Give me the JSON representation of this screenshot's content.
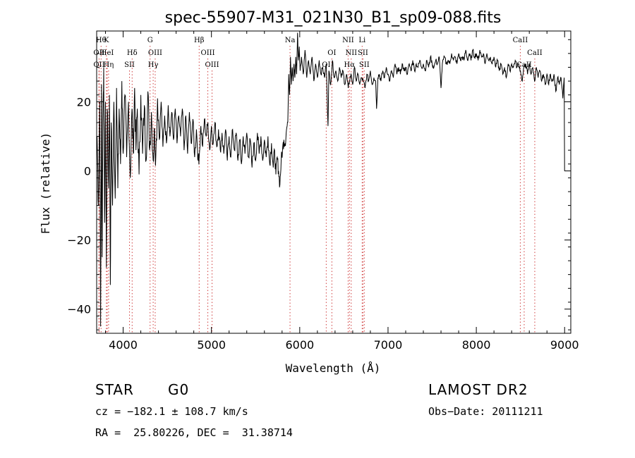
{
  "chart_data": {
    "type": "line",
    "title": "spec-55907-M31_021N30_B1_sp09-088.fits",
    "xlabel": "Wavelength (Å)",
    "ylabel": "Flux (relative)",
    "xlim": [
      3700,
      9070
    ],
    "ylim": [
      -47,
      40.5
    ],
    "xticks": [
      4000,
      5000,
      6000,
      7000,
      8000,
      9000
    ],
    "xtick_labels": [
      "4000",
      "5000",
      "6000",
      "7000",
      "8000",
      "9000"
    ],
    "yticks": [
      -40,
      -20,
      0,
      20
    ],
    "ytick_labels": [
      "−40",
      "−20",
      "0",
      "20"
    ],
    "grid": false,
    "series": [
      {
        "color": "#000000",
        "points": [
          [
            3705,
            10
          ],
          [
            3720,
            -10
          ],
          [
            3735,
            20
          ],
          [
            3745,
            -45
          ],
          [
            3755,
            25
          ],
          [
            3762,
            -25
          ],
          [
            3770,
            15
          ],
          [
            3780,
            30
          ],
          [
            3790,
            -15
          ],
          [
            3800,
            20
          ],
          [
            3810,
            -28
          ],
          [
            3820,
            18
          ],
          [
            3835,
            -5
          ],
          [
            3845,
            22
          ],
          [
            3855,
            -33
          ],
          [
            3865,
            14
          ],
          [
            3880,
            -10
          ],
          [
            3895,
            20
          ],
          [
            3910,
            -8
          ],
          [
            3925,
            24
          ],
          [
            3940,
            -5
          ],
          [
            3955,
            18
          ],
          [
            3970,
            2
          ],
          [
            3985,
            26
          ],
          [
            4000,
            5
          ],
          [
            4020,
            22
          ],
          [
            4040,
            4
          ],
          [
            4060,
            20
          ],
          [
            4080,
            -2
          ],
          [
            4100,
            18
          ],
          [
            4115,
            5
          ],
          [
            4130,
            24
          ],
          [
            4145,
            6
          ],
          [
            4160,
            18
          ],
          [
            4180,
            -1
          ],
          [
            4200,
            22
          ],
          [
            4220,
            5
          ],
          [
            4240,
            19
          ],
          [
            4260,
            3
          ],
          [
            4280,
            23
          ],
          [
            4300,
            6
          ],
          [
            4320,
            17
          ],
          [
            4340,
            3
          ],
          [
            4355,
            12
          ],
          [
            4370,
            4
          ],
          [
            4390,
            21
          ],
          [
            4410,
            9
          ],
          [
            4430,
            20
          ],
          [
            4450,
            7
          ],
          [
            4470,
            16
          ],
          [
            4490,
            8
          ],
          [
            4510,
            19
          ],
          [
            4530,
            10
          ],
          [
            4550,
            17
          ],
          [
            4570,
            9
          ],
          [
            4590,
            18
          ],
          [
            4610,
            8
          ],
          [
            4630,
            16
          ],
          [
            4650,
            10
          ],
          [
            4670,
            18
          ],
          [
            4690,
            6
          ],
          [
            4710,
            16
          ],
          [
            4730,
            5
          ],
          [
            4750,
            17
          ],
          [
            4770,
            8
          ],
          [
            4790,
            15
          ],
          [
            4810,
            4
          ],
          [
            4830,
            12
          ],
          [
            4850,
            3
          ],
          [
            4861,
            4
          ],
          [
            4880,
            13
          ],
          [
            4900,
            7
          ],
          [
            4920,
            15
          ],
          [
            4940,
            10
          ],
          [
            4960,
            14
          ],
          [
            4980,
            6
          ],
          [
            5000,
            13
          ],
          [
            5020,
            8
          ],
          [
            5040,
            14
          ],
          [
            5060,
            7
          ],
          [
            5080,
            12
          ],
          [
            5100,
            6
          ],
          [
            5120,
            11
          ],
          [
            5140,
            5
          ],
          [
            5160,
            12
          ],
          [
            5180,
            3
          ],
          [
            5200,
            10
          ],
          [
            5220,
            4
          ],
          [
            5240,
            12
          ],
          [
            5260,
            6
          ],
          [
            5280,
            11
          ],
          [
            5300,
            3
          ],
          [
            5320,
            9
          ],
          [
            5340,
            2
          ],
          [
            5360,
            10
          ],
          [
            5380,
            5
          ],
          [
            5400,
            11
          ],
          [
            5420,
            4
          ],
          [
            5440,
            9
          ],
          [
            5460,
            1
          ],
          [
            5480,
            8
          ],
          [
            5500,
            3
          ],
          [
            5520,
            11
          ],
          [
            5540,
            5
          ],
          [
            5560,
            10
          ],
          [
            5580,
            3
          ],
          [
            5600,
            9
          ],
          [
            5620,
            4
          ],
          [
            5640,
            10
          ],
          [
            5660,
            2
          ],
          [
            5680,
            8
          ],
          [
            5700,
            1
          ],
          [
            5715,
            6
          ],
          [
            5730,
            -1
          ],
          [
            5745,
            4
          ],
          [
            5760,
            0
          ],
          [
            5775,
            -4
          ],
          [
            5790,
            3
          ],
          [
            5805,
            6
          ],
          [
            5820,
            9
          ],
          [
            5835,
            8
          ],
          [
            5850,
            12
          ],
          [
            5865,
            14
          ],
          [
            5875,
            28
          ],
          [
            5885,
            22
          ],
          [
            5895,
            33
          ],
          [
            5905,
            25
          ],
          [
            5915,
            30
          ],
          [
            5925,
            26
          ],
          [
            5935,
            31
          ],
          [
            5945,
            27
          ],
          [
            5955,
            33
          ],
          [
            5965,
            28
          ],
          [
            5975,
            40
          ],
          [
            5985,
            32
          ],
          [
            5995,
            36
          ],
          [
            6005,
            29
          ],
          [
            6020,
            33
          ],
          [
            6040,
            28
          ],
          [
            6060,
            35
          ],
          [
            6080,
            27
          ],
          [
            6100,
            32
          ],
          [
            6120,
            28
          ],
          [
            6140,
            33
          ],
          [
            6160,
            26
          ],
          [
            6180,
            31
          ],
          [
            6200,
            27
          ],
          [
            6220,
            32
          ],
          [
            6240,
            28
          ],
          [
            6260,
            30
          ],
          [
            6280,
            27
          ],
          [
            6300,
            31
          ],
          [
            6320,
            13
          ],
          [
            6330,
            29
          ],
          [
            6350,
            25
          ],
          [
            6370,
            32
          ],
          [
            6390,
            27
          ],
          [
            6410,
            29
          ],
          [
            6430,
            26
          ],
          [
            6450,
            30
          ],
          [
            6470,
            27
          ],
          [
            6490,
            29
          ],
          [
            6510,
            25
          ],
          [
            6530,
            28
          ],
          [
            6550,
            24
          ],
          [
            6563,
            26
          ],
          [
            6580,
            28
          ],
          [
            6600,
            25
          ],
          [
            6620,
            30
          ],
          [
            6640,
            26
          ],
          [
            6660,
            28
          ],
          [
            6680,
            25
          ],
          [
            6700,
            27
          ],
          [
            6720,
            26
          ],
          [
            6740,
            24
          ],
          [
            6760,
            28
          ],
          [
            6780,
            26
          ],
          [
            6800,
            29
          ],
          [
            6820,
            25
          ],
          [
            6840,
            27
          ],
          [
            6860,
            26
          ],
          [
            6870,
            18
          ],
          [
            6885,
            27
          ],
          [
            6900,
            28
          ],
          [
            6920,
            26
          ],
          [
            6940,
            29
          ],
          [
            6960,
            27
          ],
          [
            6980,
            30
          ],
          [
            7000,
            28
          ],
          [
            7020,
            26
          ],
          [
            7040,
            29
          ],
          [
            7060,
            27
          ],
          [
            7080,
            31
          ],
          [
            7100,
            28
          ],
          [
            7120,
            30
          ],
          [
            7140,
            28
          ],
          [
            7160,
            31
          ],
          [
            7180,
            29
          ],
          [
            7200,
            30
          ],
          [
            7220,
            28
          ],
          [
            7240,
            31
          ],
          [
            7260,
            29
          ],
          [
            7280,
            32
          ],
          [
            7300,
            29
          ],
          [
            7320,
            31
          ],
          [
            7340,
            30
          ],
          [
            7360,
            32
          ],
          [
            7380,
            30
          ],
          [
            7400,
            31
          ],
          [
            7420,
            29
          ],
          [
            7440,
            32
          ],
          [
            7460,
            30
          ],
          [
            7480,
            33
          ],
          [
            7500,
            31
          ],
          [
            7520,
            30
          ],
          [
            7540,
            32
          ],
          [
            7560,
            31
          ],
          [
            7580,
            33
          ],
          [
            7600,
            24
          ],
          [
            7615,
            31
          ],
          [
            7640,
            33
          ],
          [
            7660,
            31
          ],
          [
            7680,
            32
          ],
          [
            7700,
            31
          ],
          [
            7720,
            34
          ],
          [
            7740,
            32
          ],
          [
            7760,
            33
          ],
          [
            7780,
            31
          ],
          [
            7800,
            34
          ],
          [
            7820,
            32
          ],
          [
            7840,
            33
          ],
          [
            7860,
            32
          ],
          [
            7880,
            35
          ],
          [
            7900,
            32
          ],
          [
            7920,
            34
          ],
          [
            7940,
            32
          ],
          [
            7960,
            35
          ],
          [
            7980,
            33
          ],
          [
            8000,
            34
          ],
          [
            8020,
            32
          ],
          [
            8040,
            35
          ],
          [
            8060,
            33
          ],
          [
            8080,
            34
          ],
          [
            8100,
            31
          ],
          [
            8120,
            34
          ],
          [
            8140,
            32
          ],
          [
            8160,
            33
          ],
          [
            8180,
            31
          ],
          [
            8200,
            33
          ],
          [
            8220,
            30
          ],
          [
            8240,
            32
          ],
          [
            8260,
            29
          ],
          [
            8280,
            31
          ],
          [
            8300,
            28
          ],
          [
            8320,
            30
          ],
          [
            8340,
            27
          ],
          [
            8360,
            31
          ],
          [
            8380,
            29
          ],
          [
            8400,
            31
          ],
          [
            8420,
            30
          ],
          [
            8440,
            32
          ],
          [
            8460,
            30
          ],
          [
            8480,
            31
          ],
          [
            8500,
            29
          ],
          [
            8520,
            26
          ],
          [
            8540,
            30
          ],
          [
            8560,
            31
          ],
          [
            8580,
            28
          ],
          [
            8600,
            31
          ],
          [
            8620,
            28
          ],
          [
            8640,
            30
          ],
          [
            8660,
            26
          ],
          [
            8680,
            30
          ],
          [
            8700,
            27
          ],
          [
            8720,
            29
          ],
          [
            8740,
            26
          ],
          [
            8760,
            28
          ],
          [
            8780,
            25
          ],
          [
            8800,
            28
          ],
          [
            8820,
            25
          ],
          [
            8840,
            28
          ],
          [
            8860,
            26
          ],
          [
            8880,
            28
          ],
          [
            8900,
            23
          ],
          [
            8920,
            27
          ],
          [
            8940,
            25
          ],
          [
            8960,
            27
          ],
          [
            8980,
            21
          ],
          [
            8995,
            27
          ],
          [
            9000,
            0
          ]
        ]
      }
    ],
    "line_ids": [
      {
        "wl": 3750,
        "label": "Hθ",
        "row": 0
      },
      {
        "wl": 3810,
        "label": "K",
        "row": 0
      },
      {
        "wl": 3727,
        "label": "OII",
        "row": 1
      },
      {
        "wl": 3820,
        "label": "HeI",
        "row": 1
      },
      {
        "wl": 4102,
        "label": "Hδ",
        "row": 1
      },
      {
        "wl": 3727,
        "label": "OII",
        "row": 2
      },
      {
        "wl": 3835,
        "label": "Hη",
        "row": 2
      },
      {
        "wl": 4072,
        "label": "SII",
        "row": 2
      },
      {
        "wl": 4305,
        "label": "G",
        "row": 0
      },
      {
        "wl": 4363,
        "label": "OIII",
        "row": 1
      },
      {
        "wl": 4340,
        "label": "Hγ",
        "row": 2
      },
      {
        "wl": 4861,
        "label": "Hβ",
        "row": 0
      },
      {
        "wl": 4959,
        "label": "OIII",
        "row": 1
      },
      {
        "wl": 5007,
        "label": "OIII",
        "row": 2
      },
      {
        "wl": 5890,
        "label": "Na",
        "row": 0
      },
      {
        "wl": 6364,
        "label": "OI",
        "row": 1
      },
      {
        "wl": 6300,
        "label": "OI",
        "row": 2
      },
      {
        "wl": 6548,
        "label": "NII",
        "row": 0
      },
      {
        "wl": 6707,
        "label": "Li",
        "row": 0
      },
      {
        "wl": 6583,
        "label": "NII",
        "row": 1
      },
      {
        "wl": 6716,
        "label": "SII",
        "row": 1
      },
      {
        "wl": 6563,
        "label": "Hα",
        "row": 2
      },
      {
        "wl": 6731,
        "label": "SII",
        "row": 2
      },
      {
        "wl": 8498,
        "label": "CaII",
        "row": 0
      },
      {
        "wl": 8662,
        "label": "CaII",
        "row": 1
      },
      {
        "wl": 8542,
        "label": "CaII",
        "row": 2
      }
    ]
  },
  "info": {
    "class_label": "STAR",
    "subclass": "G0",
    "survey": "LAMOST DR2",
    "cz_line": "cz = −182.1 ± 108.7 km/s",
    "obs_date_line": "Obs−Date: 20111211",
    "coords_line": "RA =  25.80226, DEC =  31.38714"
  }
}
